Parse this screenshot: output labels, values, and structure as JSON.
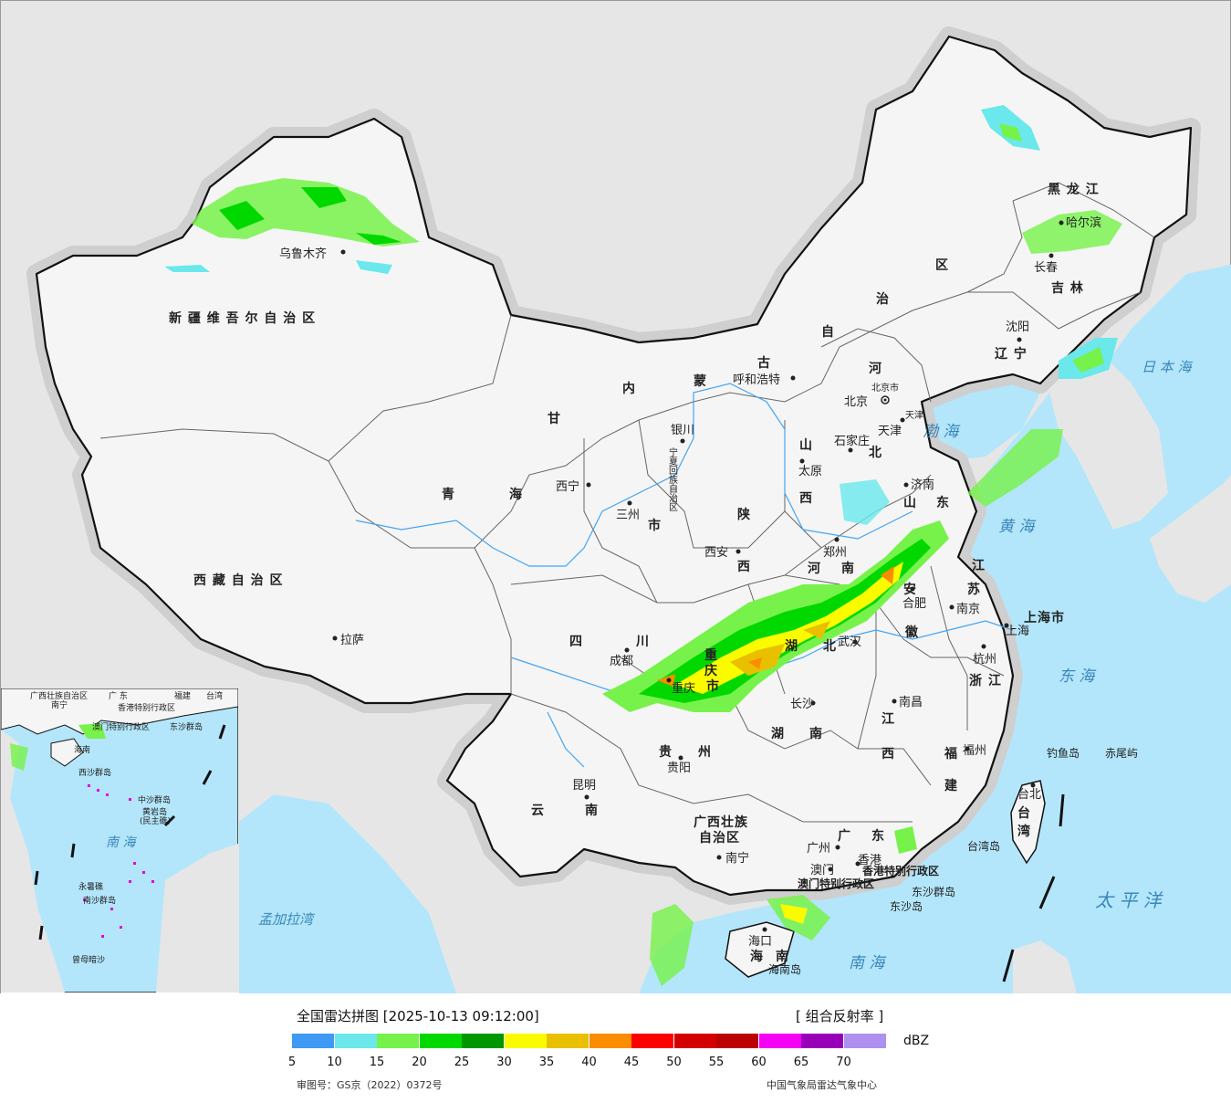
{
  "legend": {
    "title": "全国雷达拼图 [2025-10-13 09:12:00]",
    "product": "[ 组合反射率 ]",
    "unit": "dBZ",
    "colors": [
      "#3e9af2",
      "#6ae8ec",
      "#77f24a",
      "#00d800",
      "#009600",
      "#fbfb00",
      "#e8c000",
      "#fc8c00",
      "#fc0000",
      "#d40000",
      "#bc0000",
      "#f600f6",
      "#9800b8",
      "#ad90f0"
    ],
    "ticks": [
      "5",
      "10",
      "15",
      "20",
      "25",
      "30",
      "35",
      "40",
      "45",
      "50",
      "55",
      "60",
      "65",
      "70"
    ],
    "approval": "审图号：GS京（2022）0372号",
    "credit": "中国气象局雷达气象中心"
  },
  "regions": {
    "xinjiang": "新 疆 维 吾 尔 自 治 区",
    "xizang": "西 藏 自 治 区",
    "qinghai_1": "青",
    "qinghai_2": "海",
    "gansu": "甘",
    "sichuan_1": "四",
    "sichuan_2": "川",
    "yunnan_1": "云",
    "yunnan_2": "南",
    "guizhou_1": "贵",
    "guizhou_2": "州",
    "guangxi_1": "广西壮族",
    "guangxi_2": "自治区",
    "guangdong_1": "广",
    "guangdong_2": "东",
    "hainan_1": "海",
    "hainan_2": "南",
    "hunan_1": "湖",
    "hunan_2": "南",
    "hubei_1": "湖",
    "hubei_2": "北",
    "jiangxi_1": "江",
    "jiangxi_2": "西",
    "fujian_1": "福",
    "fujian_2": "建",
    "zhejiang": "浙 江",
    "anhui_1": "安",
    "anhui_2": "徽",
    "jiangsu_1": "江",
    "jiangsu_2": "苏",
    "shandong_1": "山",
    "shandong_2": "东",
    "henan_1": "河",
    "henan_2": "南",
    "shanxi_1": "山",
    "shanxi_2": "西",
    "shaanxi_1": "陕",
    "shaanxi_2": "西",
    "hebei_1": "河",
    "hebei_2": "北",
    "neimenggu_1": "内",
    "neimenggu_2": "蒙",
    "neimenggu_3": "古",
    "neimenggu_4": "自",
    "neimenggu_5": "治",
    "neimenggu_6": "区",
    "heilongjiang": "黑 龙 江",
    "jilin": "吉 林",
    "liaoning": "辽 宁",
    "chongqing_1": "重",
    "chongqing_2": "庆",
    "chongqing_3": "市",
    "shanghai": "上海市",
    "taiwan_1": "台",
    "taiwan_2": "湾",
    "beijing": "北京市",
    "tianjin": "天津",
    "ningxia": "宁夏回族自治区",
    "hk_sar": "香港特别行政区",
    "macao_sar": "澳门特别行政区",
    "gansu_shi": "市"
  },
  "cities": {
    "urumqi": "乌鲁木齐",
    "lhasa": "拉萨",
    "xining": "西宁",
    "lanzhou": "三州",
    "yinchuan": "银川",
    "hohhot": "呼和浩特",
    "beijing": "北京",
    "tianjin": "天津",
    "shijiazhuang": "石家庄",
    "taiyuan": "太原",
    "jinan": "济南",
    "zhengzhou": "郑州",
    "xian": "西安",
    "chengdu": "成都",
    "chongqing": "重庆",
    "wuhan": "武汉",
    "hefei": "合肥",
    "nanjing": "南京",
    "shanghai": "上海",
    "hangzhou": "杭州",
    "changsha": "长沙",
    "nanchang": "南昌",
    "fuzhou": "福州",
    "guiyang": "贵阳",
    "kunming": "昆明",
    "nanning": "南宁",
    "guangzhou": "广州",
    "hongkong": "香港",
    "macao": "澳门",
    "haikou": "海口",
    "taipei": "台北",
    "shenyang": "沈阳",
    "changchun": "长春",
    "harbin": "哈尔滨"
  },
  "seas": {
    "bohai": "渤 海",
    "yellow": "黄 海",
    "east": "东 海",
    "south": "南 海",
    "pacific": "太 平 洋",
    "japan": "日 本 海",
    "bengal": "孟加拉湾"
  },
  "islands": {
    "diaoyu": "钓鱼岛",
    "chiwei": "赤尾屿",
    "taiwan_island": "台湾岛",
    "dongsha_islands": "东沙群岛",
    "dongsha_island": "东沙岛",
    "hainan_island": "海南岛"
  },
  "inset": {
    "guangxi": "广西壮族自治区",
    "nanning": "南宁",
    "guangdong": "广 东",
    "hk": "香港特别行政区",
    "macao": "澳门特别行政区",
    "fujian": "福建",
    "taiwan": "台湾",
    "dongsha": "东沙群岛",
    "hainan": "海南",
    "xisha": "西沙群岛",
    "zhongsha": "中沙群岛",
    "huangyan": "黄岩岛",
    "huangyan2": "(民主礁)",
    "nansha": "南沙群岛",
    "south_sea": "南 海",
    "yongshu": "永暑礁",
    "zengmu": "曾母暗沙"
  }
}
